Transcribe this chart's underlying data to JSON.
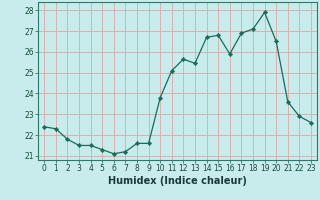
{
  "xlabel": "Humidex (Indice chaleur)",
  "ylabel": "",
  "x": [
    0,
    1,
    2,
    3,
    4,
    5,
    6,
    7,
    8,
    9,
    10,
    11,
    12,
    13,
    14,
    15,
    16,
    17,
    18,
    19,
    20,
    21,
    22,
    23
  ],
  "y": [
    22.4,
    22.3,
    21.8,
    21.5,
    21.5,
    21.3,
    21.1,
    21.2,
    21.6,
    21.6,
    23.8,
    25.1,
    25.65,
    25.45,
    26.7,
    26.8,
    25.9,
    26.9,
    27.1,
    27.9,
    26.5,
    23.6,
    22.9,
    22.6
  ],
  "line_color": "#1a6b5a",
  "marker": "D",
  "marker_size": 2.2,
  "bg_color": "#c8ecec",
  "grid_color": "#d8a8a8",
  "ylim": [
    20.8,
    28.4
  ],
  "yticks": [
    21,
    22,
    23,
    24,
    25,
    26,
    27,
    28
  ],
  "xlim": [
    -0.5,
    23.5
  ],
  "tick_fontsize": 5.5,
  "xlabel_fontsize": 7.0
}
